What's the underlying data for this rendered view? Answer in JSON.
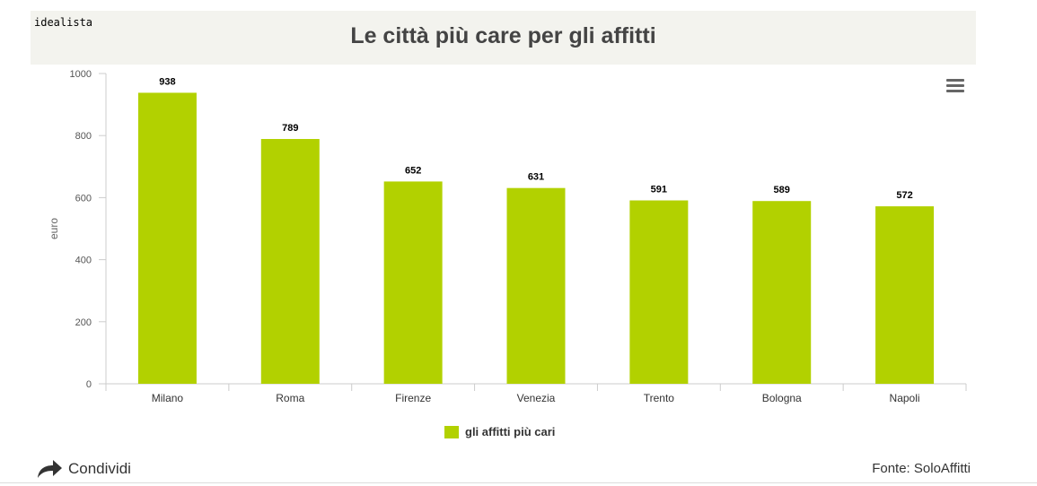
{
  "header": {
    "brand": "idealista",
    "title": "Le città più care per gli affitti"
  },
  "chart_data": {
    "type": "bar",
    "title": "Le città più care per gli affitti",
    "xlabel": "",
    "ylabel": "euro",
    "categories": [
      "Milano",
      "Roma",
      "Firenze",
      "Venezia",
      "Trento",
      "Bologna",
      "Napoli"
    ],
    "series": [
      {
        "name": "gli affitti più cari",
        "values": [
          938,
          789,
          652,
          631,
          591,
          589,
          572
        ],
        "color": "#b2d100"
      }
    ],
    "ylim": [
      0,
      1000
    ],
    "yticks": [
      0,
      200,
      400,
      600,
      800,
      1000
    ],
    "grid": false,
    "legend": "bottom-center",
    "data_labels": true
  },
  "legend": {
    "label": "gli affitti più cari",
    "color": "#b2d100"
  },
  "footer": {
    "share_label": "Condividi",
    "source": "Fonte: SoloAffitti"
  },
  "icons": {
    "menu": "hamburger-menu-icon",
    "share": "share-arrow-icon"
  }
}
